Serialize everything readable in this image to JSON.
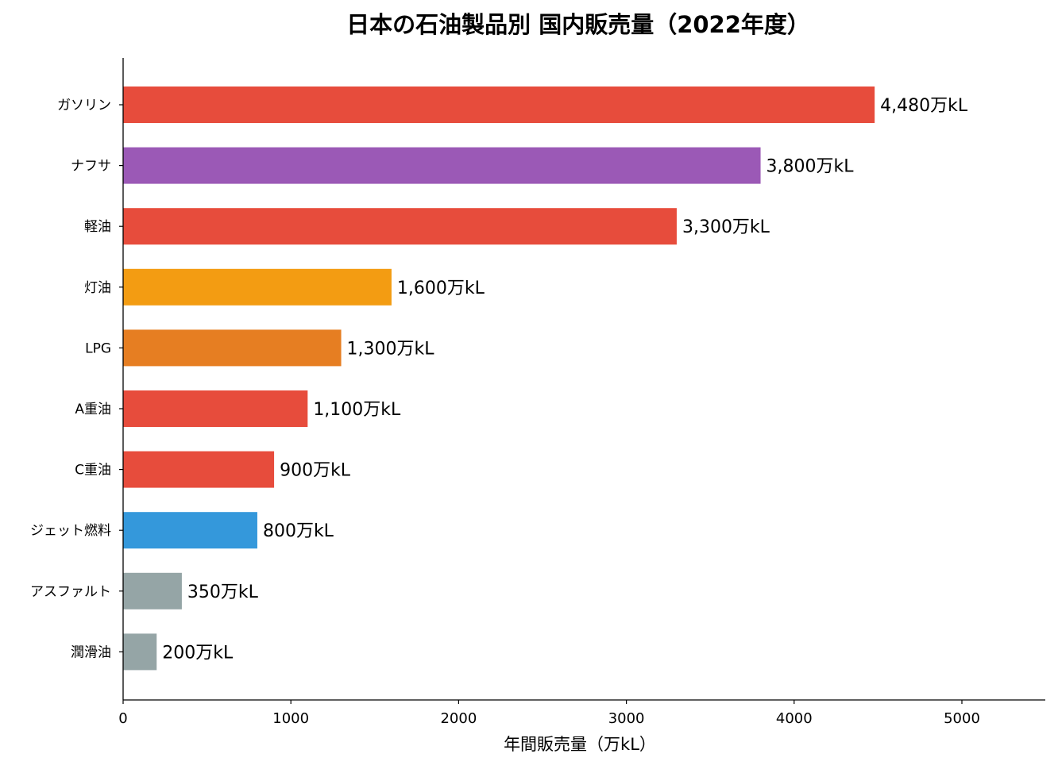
{
  "chart_data": {
    "type": "bar",
    "orientation": "horizontal",
    "title": "日本の石油製品別 国内販売量（2022年度）",
    "xlabel": "年間販売量（万kL）",
    "ylabel": "",
    "xlim": [
      0,
      5500
    ],
    "xticks": [
      0,
      1000,
      2000,
      3000,
      4000,
      5000
    ],
    "grid": false,
    "categories": [
      "ガソリン",
      "ナフサ",
      "軽油",
      "灯油",
      "LPG",
      "A重油",
      "C重油",
      "ジェット燃料",
      "アスファルト",
      "潤滑油"
    ],
    "values": [
      4480,
      3800,
      3300,
      1600,
      1300,
      1100,
      900,
      800,
      350,
      200
    ],
    "value_labels": [
      "4,480万kL",
      "3,800万kL",
      "3,300万kL",
      "1,600万kL",
      "1,300万kL",
      "1,100万kL",
      "900万kL",
      "800万kL",
      "350万kL",
      "200万kL"
    ],
    "colors": [
      "#e74c3c",
      "#9b59b6",
      "#e74c3c",
      "#f39c12",
      "#e67e22",
      "#e74c3c",
      "#e74c3c",
      "#3498db",
      "#95a5a6",
      "#95a5a6"
    ]
  }
}
